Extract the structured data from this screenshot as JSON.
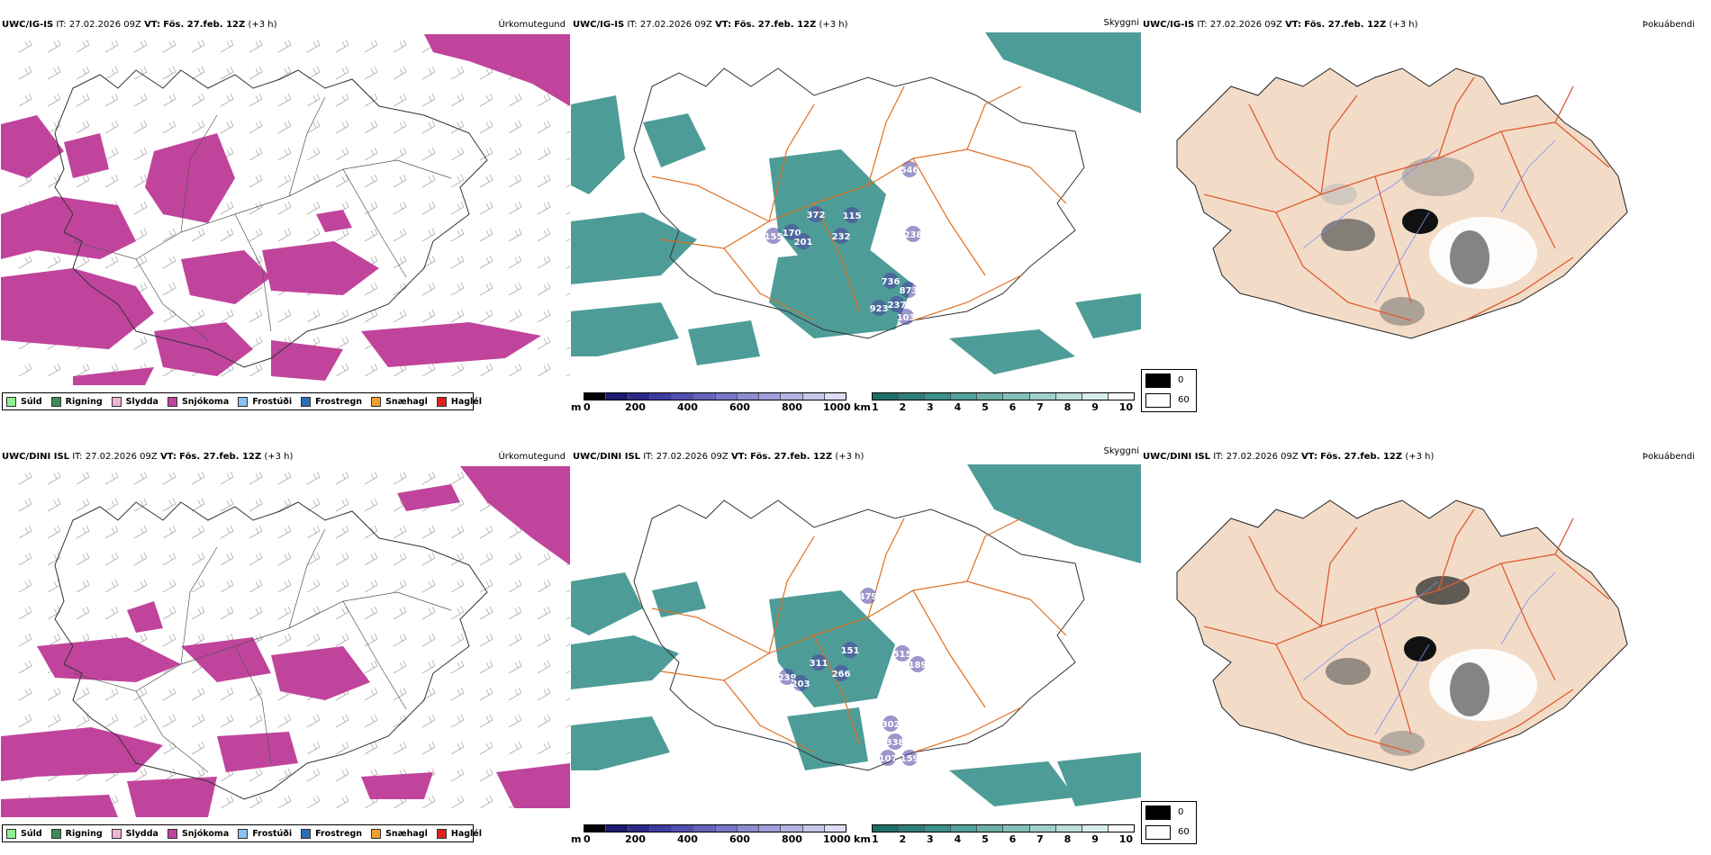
{
  "rows": [
    {
      "model": "UWC/IG-IS",
      "it_label": "IT:",
      "it_value": "27.02.2026 09Z",
      "vt_label": "VT:",
      "vt_value": "Fös. 27.feb. 12Z",
      "lead": "(+3 h)",
      "precip_title": "Úrkomutegund",
      "vis_title": "Skyggni",
      "fog_title": "Þokuábendi",
      "ceiling_values": [
        {
          "v": "155"
        },
        {
          "v": "170"
        },
        {
          "v": "201"
        },
        {
          "v": "372"
        },
        {
          "v": "115"
        },
        {
          "v": "232"
        },
        {
          "v": "238"
        },
        {
          "v": "736"
        },
        {
          "v": "873"
        },
        {
          "v": "923"
        },
        {
          "v": "237"
        },
        {
          "v": "103"
        },
        {
          "v": "546"
        }
      ]
    },
    {
      "model": "UWC/DINI ISL",
      "it_label": "IT:",
      "it_value": "27.02.2026 09Z",
      "vt_label": "VT:",
      "vt_value": "Fös. 27.feb. 12Z",
      "lead": "(+3 h)",
      "precip_title": "Úrkomutegund",
      "vis_title": "Skyggni",
      "fog_title": "Þokuábendi",
      "ceiling_values": [
        {
          "v": "239"
        },
        {
          "v": "203"
        },
        {
          "v": "311"
        },
        {
          "v": "266"
        },
        {
          "v": "151"
        },
        {
          "v": "515"
        },
        {
          "v": "189"
        },
        {
          "v": "302"
        },
        {
          "v": "338"
        },
        {
          "v": "107"
        },
        {
          "v": "159"
        },
        {
          "v": "479"
        }
      ]
    }
  ],
  "precip_legend": [
    {
      "label": "Súld",
      "color": "#90ee90"
    },
    {
      "label": "Rigning",
      "color": "#3c8c5a"
    },
    {
      "label": "Slydda",
      "color": "#f0b4d8"
    },
    {
      "label": "Snjókoma",
      "color": "#c0449c"
    },
    {
      "label": "Frostúði",
      "color": "#88c0f0"
    },
    {
      "label": "Frostregn",
      "color": "#2c6cb0"
    },
    {
      "label": "Snæhagl",
      "color": "#f0a030"
    },
    {
      "label": "Haglél",
      "color": "#e02020"
    }
  ],
  "ceiling_scale": {
    "unit": "m",
    "ticks": [
      "0",
      "200",
      "400",
      "600",
      "800",
      "1000"
    ]
  },
  "vis_scale": {
    "unit": "km",
    "ticks": [
      "1",
      "2",
      "3",
      "4",
      "5",
      "6",
      "7",
      "8",
      "9",
      "10"
    ]
  },
  "fog_scale": {
    "values": [
      "0",
      "60"
    ]
  },
  "colors": {
    "snow": "#c0449c",
    "vis": "#2e8b85",
    "ceiling": "#4a3fa0",
    "roads": "#e07020",
    "fogland": "#f2dcc8",
    "fogroad": "#e05a30"
  }
}
